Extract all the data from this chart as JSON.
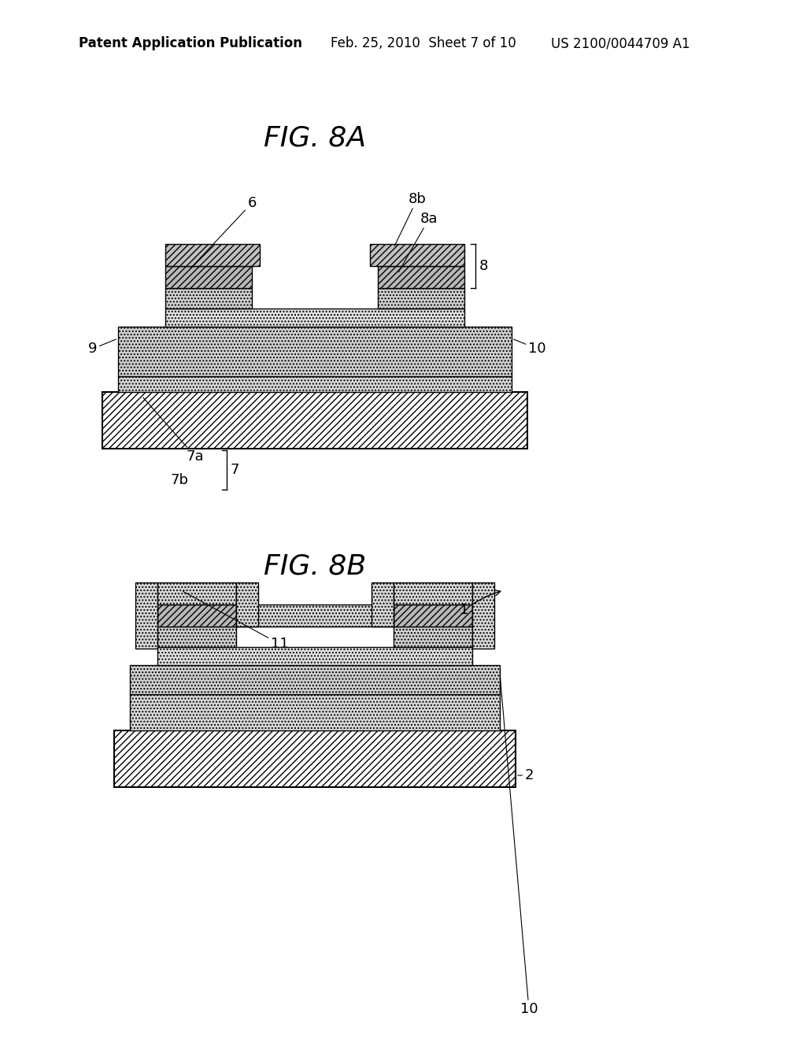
{
  "bg_color": "#ffffff",
  "line_color": "#000000",
  "header_text1": "Patent Application Publication",
  "header_text2": "Feb. 25, 2010  Sheet 7 of 10",
  "header_text3": "US 2100/0044709 A1",
  "fig8a_title": "FIG. 8A",
  "fig8b_title": "FIG. 8B",
  "title_fontsize": 24,
  "label_fontsize": 13,
  "header_fontsize": 12,
  "color_hatch_metal": "#c8c8c8",
  "color_hatch_semi": "#e0e0e0",
  "color_substrate": "#ffffff",
  "color_insulator": "#d8d8d8"
}
